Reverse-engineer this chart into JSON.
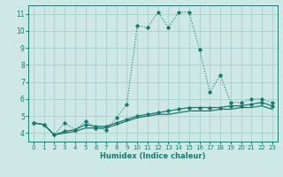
{
  "title": "",
  "xlabel": "Humidex (Indice chaleur)",
  "ylabel": "",
  "background_color": "#cee9e5",
  "grid_color": "#a8d0cb",
  "line_color": "#1a7a6e",
  "xlim": [
    -0.5,
    23.5
  ],
  "ylim": [
    3.5,
    11.5
  ],
  "yticks": [
    4,
    5,
    6,
    7,
    8,
    9,
    10,
    11
  ],
  "xticks": [
    0,
    1,
    2,
    3,
    4,
    5,
    6,
    7,
    8,
    9,
    10,
    11,
    12,
    13,
    14,
    15,
    16,
    17,
    18,
    19,
    20,
    21,
    22,
    23
  ],
  "series1_x": [
    0,
    1,
    2,
    3,
    4,
    5,
    6,
    7,
    8,
    9,
    10,
    11,
    12,
    13,
    14,
    15,
    16,
    17,
    18,
    19,
    20,
    21,
    22,
    23
  ],
  "series1_y": [
    4.6,
    4.5,
    3.9,
    4.6,
    4.2,
    4.7,
    4.3,
    4.2,
    4.9,
    5.7,
    10.3,
    10.2,
    11.1,
    10.2,
    11.1,
    11.1,
    8.9,
    6.4,
    7.4,
    5.8,
    5.8,
    6.0,
    6.0,
    5.8
  ],
  "series2_x": [
    0,
    1,
    2,
    3,
    4,
    5,
    6,
    7,
    8,
    9,
    10,
    11,
    12,
    13,
    14,
    15,
    16,
    17,
    18,
    19,
    20,
    21,
    22,
    23
  ],
  "series2_y": [
    4.6,
    4.5,
    3.9,
    4.1,
    4.2,
    4.5,
    4.4,
    4.4,
    4.6,
    4.8,
    5.0,
    5.1,
    5.2,
    5.3,
    5.4,
    5.5,
    5.5,
    5.5,
    5.5,
    5.6,
    5.6,
    5.7,
    5.8,
    5.6
  ],
  "series3_x": [
    0,
    1,
    2,
    3,
    4,
    5,
    6,
    7,
    8,
    9,
    10,
    11,
    12,
    13,
    14,
    15,
    16,
    17,
    18,
    19,
    20,
    21,
    22,
    23
  ],
  "series3_y": [
    4.6,
    4.5,
    3.9,
    4.0,
    4.1,
    4.3,
    4.3,
    4.3,
    4.5,
    4.7,
    4.9,
    5.0,
    5.1,
    5.1,
    5.2,
    5.3,
    5.3,
    5.3,
    5.4,
    5.4,
    5.5,
    5.5,
    5.6,
    5.4
  ]
}
